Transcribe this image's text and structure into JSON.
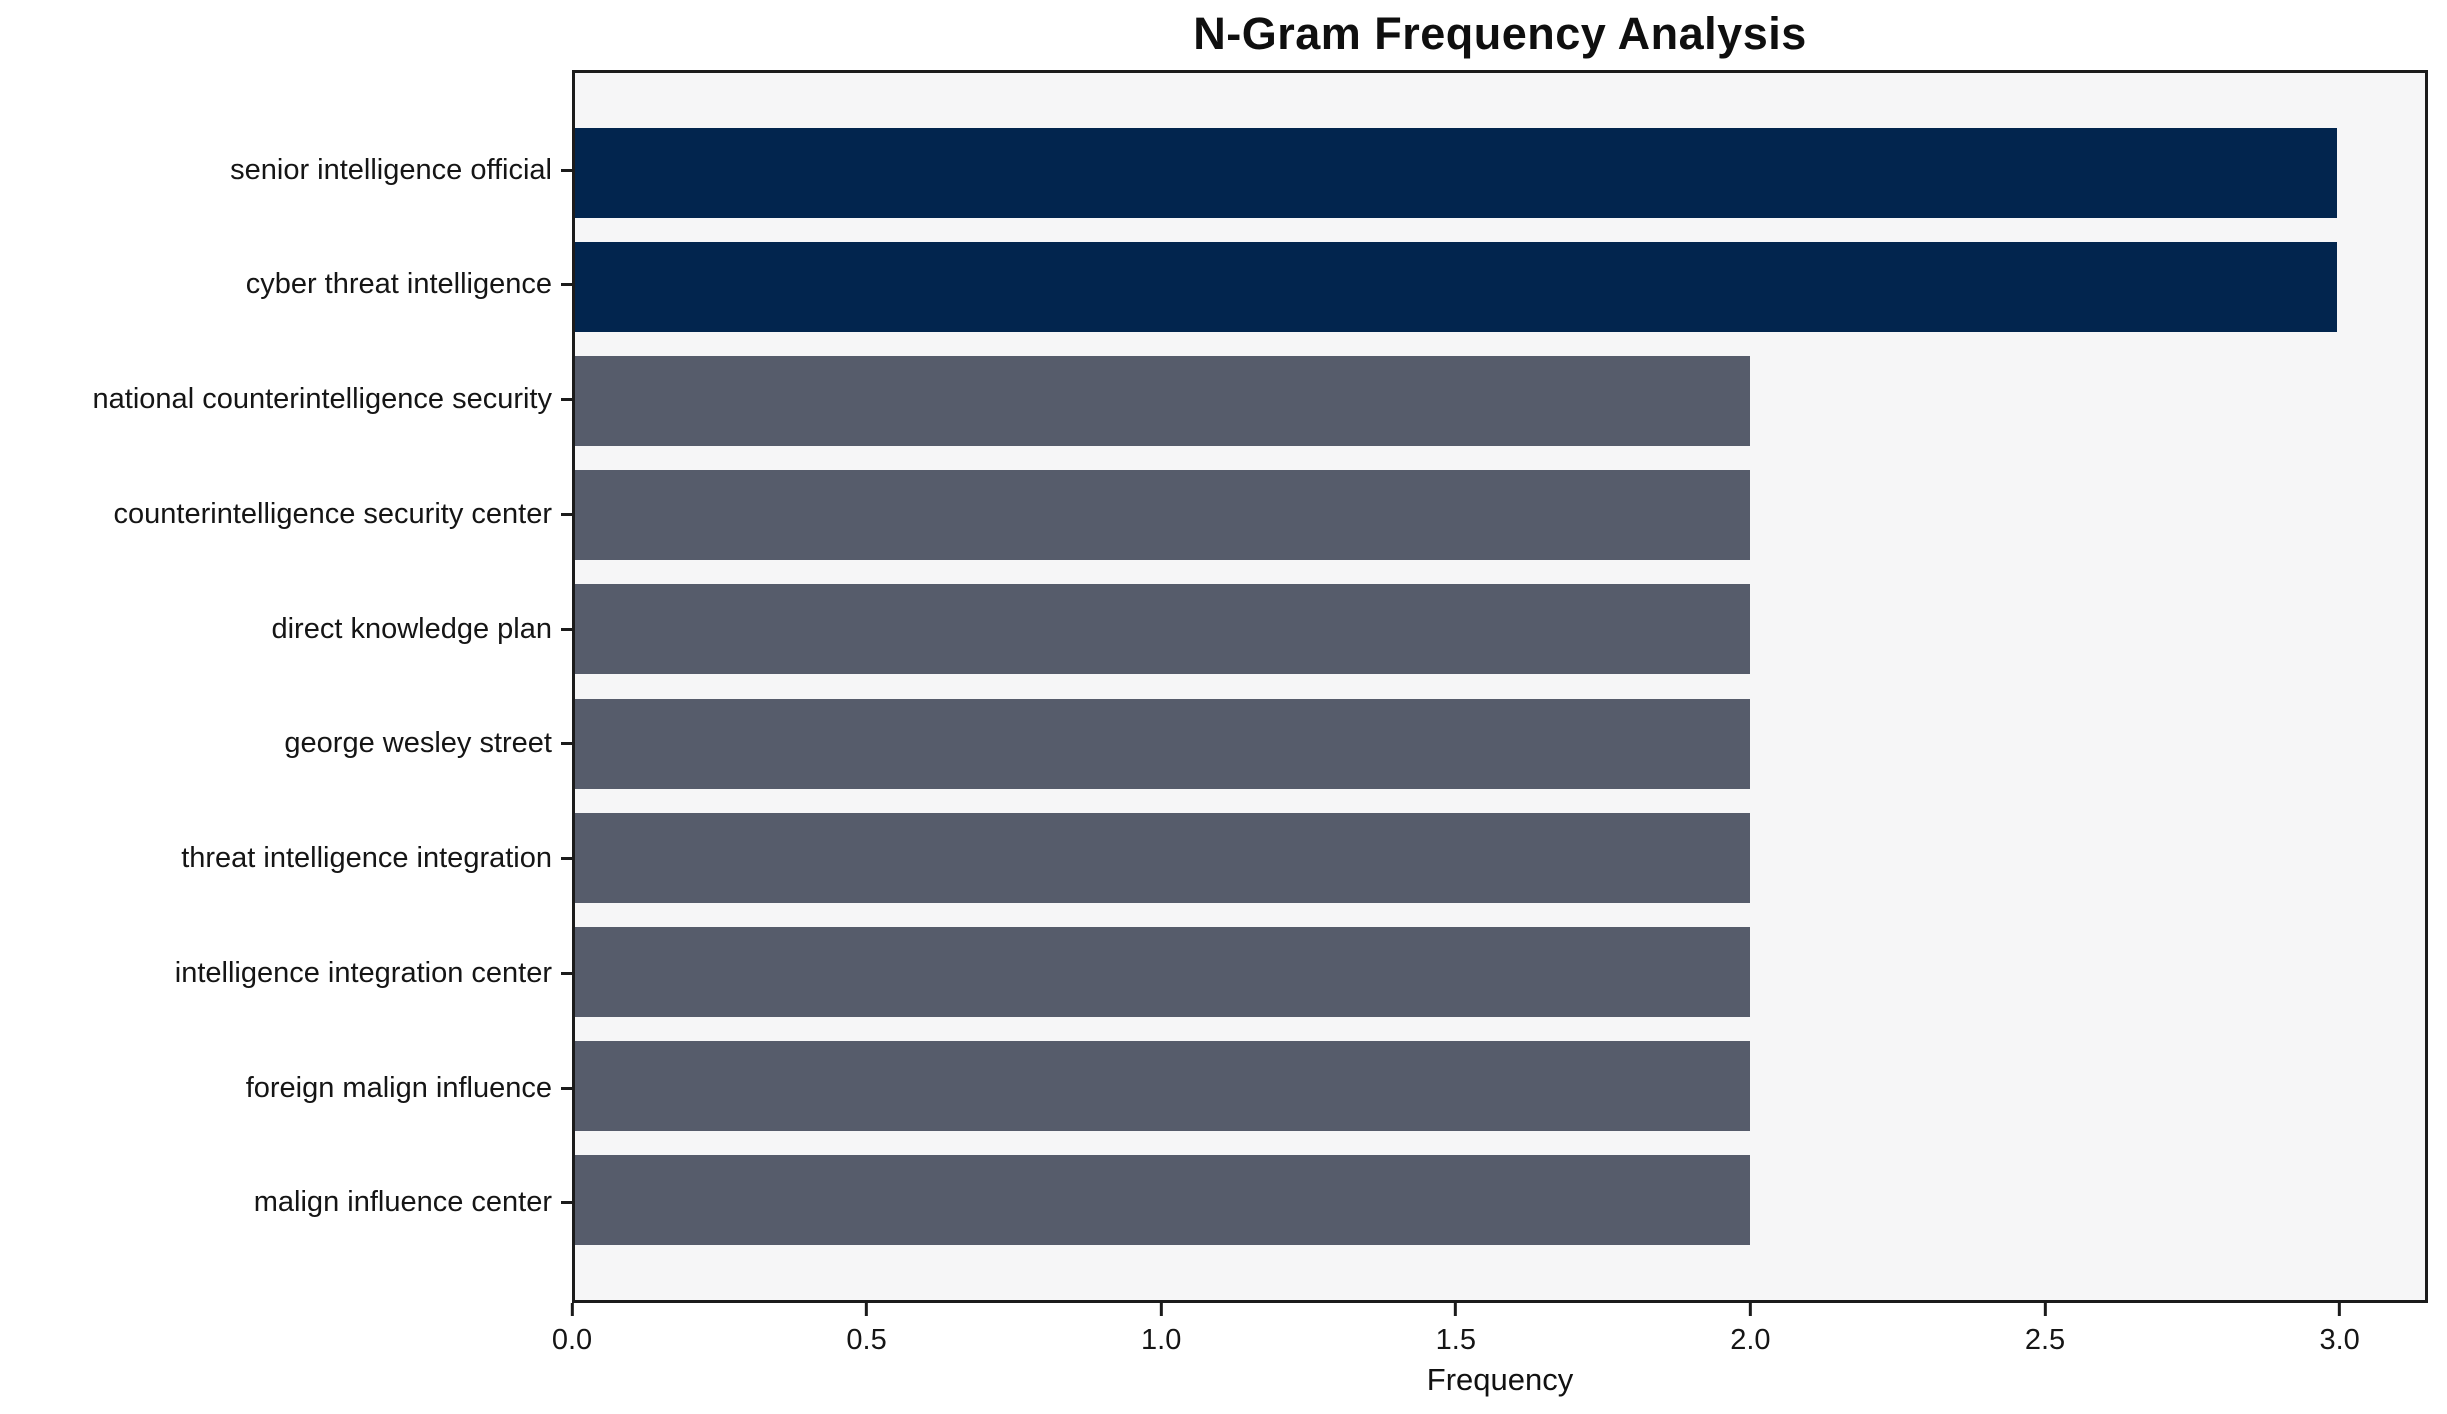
{
  "chart_data": {
    "type": "bar",
    "orientation": "horizontal",
    "title": "N-Gram Frequency Analysis",
    "xlabel": "Frequency",
    "ylabel": "",
    "categories": [
      "senior intelligence official",
      "cyber threat intelligence",
      "national counterintelligence security",
      "counterintelligence security center",
      "direct knowledge plan",
      "george wesley street",
      "threat intelligence integration",
      "intelligence integration center",
      "foreign malign influence",
      "malign influence center"
    ],
    "values": [
      3,
      3,
      2,
      2,
      2,
      2,
      2,
      2,
      2,
      2
    ],
    "bar_colors": [
      "#02254e",
      "#02254e",
      "#565c6b",
      "#565c6b",
      "#565c6b",
      "#565c6b",
      "#565c6b",
      "#565c6b",
      "#565c6b",
      "#565c6b"
    ],
    "highlight_color": "#02254e",
    "default_color": "#565c6b",
    "plot_background": "#f6f6f7",
    "spine_color": "#1b1b1b",
    "xlim": [
      0,
      3.15
    ],
    "xticks": [
      0.0,
      0.5,
      1.0,
      1.5,
      2.0,
      2.5,
      3.0
    ],
    "grid": false,
    "legend": null
  }
}
